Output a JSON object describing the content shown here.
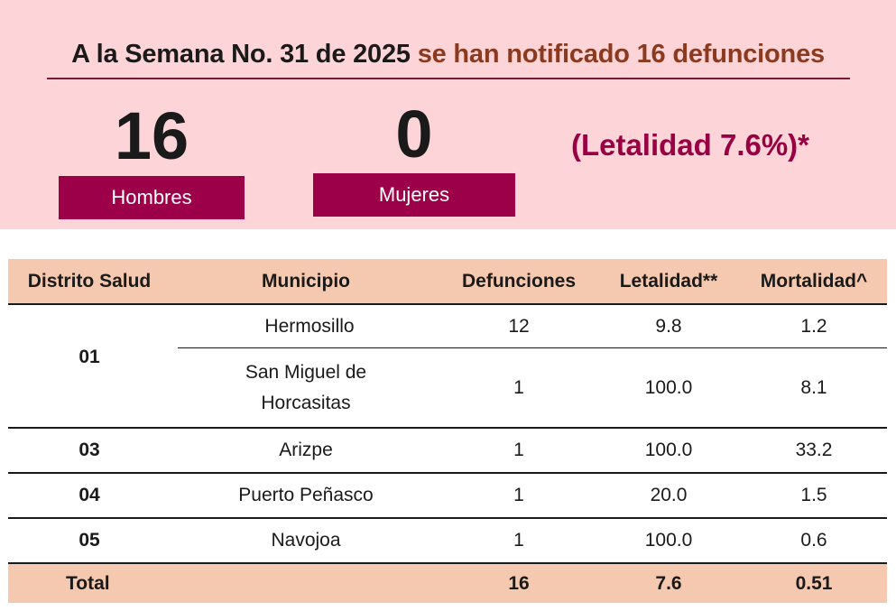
{
  "header": {
    "headline_part1": "A la Semana No. 31 de 2025",
    "headline_part2": "se han notificado 16 defunciones",
    "men_count": "16",
    "men_label": "Hombres",
    "women_count": "0",
    "women_label": "Mujeres",
    "letalidad": "(Letalidad 7.6%)*"
  },
  "table": {
    "columns": [
      "Distrito Salud",
      "Municipio",
      "Defunciones",
      "Letalidad**",
      "Mortalidad^"
    ],
    "group_01": {
      "district": "01",
      "rows": [
        {
          "municipio": "Hermosillo",
          "defunciones": "12",
          "letalidad": "9.8",
          "mortalidad": "1.2"
        },
        {
          "municipio_line1": "San Miguel de",
          "municipio_line2": "Horcasitas",
          "defunciones": "1",
          "letalidad": "100.0",
          "mortalidad": "8.1"
        }
      ]
    },
    "rows": [
      {
        "district": "03",
        "municipio": "Arizpe",
        "defunciones": "1",
        "letalidad": "100.0",
        "mortalidad": "33.2"
      },
      {
        "district": "04",
        "municipio": "Puerto Peñasco",
        "defunciones": "1",
        "letalidad": "20.0",
        "mortalidad": "1.5"
      },
      {
        "district": "05",
        "municipio": "Navojoa",
        "defunciones": "1",
        "letalidad": "100.0",
        "mortalidad": "0.6"
      }
    ],
    "total": {
      "label": "Total",
      "defunciones": "16",
      "letalidad": "7.6",
      "mortalidad": "0.51"
    }
  },
  "colors": {
    "banner_bg": "#fdd5d8",
    "accent_magenta": "#9b0048",
    "headline_brown": "#8b3a1f",
    "table_header_bg": "#f5c8b0"
  }
}
